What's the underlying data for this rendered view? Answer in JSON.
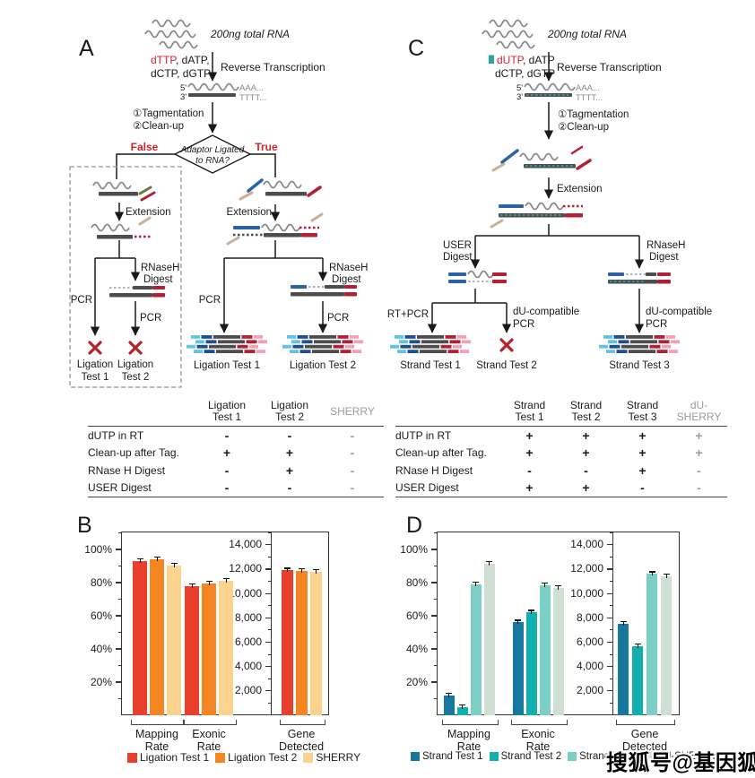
{
  "figure": {
    "panelA": {
      "letter": "A",
      "rna_input": "200ng total RNA",
      "ntp_red": "dTTP",
      "ntp_rest": ", dATP,",
      "ntp_line2": "dCTP, dGTP",
      "rt": "Reverse Transcription",
      "five": "5'",
      "three": "3'",
      "polyA": "AAA...",
      "polyT": "TTTT...",
      "step1": "①Tagmentation",
      "step2": "②Clean-up",
      "diamond1": "Adaptor Ligated",
      "diamond2": "to RNA?",
      "branch_false": "False",
      "branch_true": "True",
      "extension": "Extension",
      "pcr": "PCR",
      "rnaseh1": "RNaseH",
      "rnaseh2": "Digest",
      "fail1a": "Ligation",
      "fail1b": "Test 1",
      "fail2a": "Ligation",
      "fail2b": "Test 2",
      "out1": "Ligation Test 1",
      "out2": "Ligation Test 2"
    },
    "panelC": {
      "letter": "C",
      "rna_input": "200ng total RNA",
      "ntp_red": "dUTP",
      "ntp_rest": ", dATP",
      "ntp_line2": "dCTP, dGTP",
      "rt": "Reverse Transcription",
      "five": "5'",
      "three": "3'",
      "polyA": "AAA...",
      "polyT": "TTTT...",
      "step1": "①Tagmentation",
      "step2": "②Clean-up",
      "extension": "Extension",
      "user1": "USER",
      "user2": "Digest",
      "rnaseh1": "RNaseH",
      "rnaseh2": "Digest",
      "rtpcr": "RT+PCR",
      "du1": "dU-compatible",
      "du2": "PCR",
      "out1": "Strand Test 1",
      "out2": "Strand Test 2",
      "out3": "Strand Test 3"
    },
    "panelB_letter": "B",
    "panelD_letter": "D",
    "tableA": {
      "col_headers": [
        [
          "Ligation",
          "Test 1"
        ],
        [
          "Ligation",
          "Test 2"
        ],
        [
          "SHERRY",
          ""
        ]
      ],
      "gray_cols": [
        2
      ],
      "rows": [
        {
          "label": "dUTP in RT",
          "values": [
            "-",
            "-",
            "-"
          ]
        },
        {
          "label": "Clean-up after Tag.",
          "values": [
            "+",
            "+",
            "-"
          ]
        },
        {
          "label": "RNase H Digest",
          "values": [
            "-",
            "+",
            "-"
          ]
        },
        {
          "label": "USER Digest",
          "values": [
            "-",
            "-",
            "-"
          ]
        }
      ]
    },
    "tableC": {
      "col_headers": [
        [
          "Strand",
          "Test 1"
        ],
        [
          "Strand",
          "Test 2"
        ],
        [
          "Strand",
          "Test 3"
        ],
        [
          "dU-",
          "SHERRY"
        ]
      ],
      "gray_cols": [
        3
      ],
      "rows": [
        {
          "label": "dUTP in RT",
          "values": [
            "+",
            "+",
            "+",
            "+"
          ]
        },
        {
          "label": "Clean-up after Tag.",
          "values": [
            "+",
            "+",
            "+",
            "+"
          ]
        },
        {
          "label": "RNase H Digest",
          "values": [
            "-",
            "-",
            "+",
            "-"
          ]
        },
        {
          "label": "USER Digest",
          "values": [
            "+",
            "+",
            "-",
            "-"
          ]
        }
      ]
    },
    "watermark": "搜狐号@基因狐"
  },
  "chart_data": [
    {
      "panel": "B",
      "type": "bar",
      "categories": [
        "Mapping Rate",
        "Exonic Rate",
        "Gene Detected"
      ],
      "category_units": [
        "%",
        "%",
        "count"
      ],
      "series": [
        {
          "name": "Ligation Test 1",
          "color": "#e8402d",
          "values": [
            93,
            78,
            11900
          ]
        },
        {
          "name": "Ligation Test 2",
          "color": "#f58521",
          "values": [
            94,
            79.5,
            11850
          ]
        },
        {
          "name": "SHERRY",
          "color": "#fbd38f",
          "values": [
            90.5,
            81,
            11800
          ]
        }
      ],
      "pct_ticks": [
        20,
        40,
        60,
        80,
        100
      ],
      "count_ticks": [
        2000,
        4000,
        6000,
        8000,
        10000,
        12000,
        14000
      ],
      "pct_axis_max": 110,
      "count_axis_max": 15000,
      "legend_position": "bottom",
      "grid": false
    },
    {
      "panel": "D",
      "type": "bar",
      "categories": [
        "Mapping Rate",
        "Exonic Rate",
        "Gene Detected"
      ],
      "category_units": [
        "%",
        "%",
        "count"
      ],
      "series": [
        {
          "name": "Strand Test 1",
          "color": "#17789f",
          "values": [
            12,
            56,
            7500
          ]
        },
        {
          "name": "Strand Test 2",
          "color": "#0fb0ae",
          "values": [
            5,
            62,
            5700
          ]
        },
        {
          "name": "Strand Test 3",
          "color": "#7bcfc7",
          "values": [
            79,
            78.5,
            11600
          ]
        },
        {
          "name": "dU-SHERRY",
          "color": "#cfdfd2",
          "values": [
            91.5,
            77,
            11400
          ]
        }
      ],
      "pct_ticks": [
        20,
        40,
        60,
        80,
        100
      ],
      "count_ticks": [
        2000,
        4000,
        6000,
        8000,
        10000,
        12000,
        14000
      ],
      "pct_axis_max": 110,
      "count_axis_max": 15000,
      "legend_position": "bottom",
      "grid": false
    }
  ],
  "colors": {
    "accent_red": "#d2232a",
    "strand_gray": "#4d4d4d",
    "rna_gray": "#8a8a8a",
    "adaptor_blue": "#2b63a5",
    "adaptor_darkred": "#b42033",
    "du_teal": "#2aa8a0",
    "read_lightblue": "#62c3e0",
    "read_navy": "#1f4e8c",
    "read_pink": "#f2a0b4",
    "table_gray": "#9b9b9b"
  }
}
